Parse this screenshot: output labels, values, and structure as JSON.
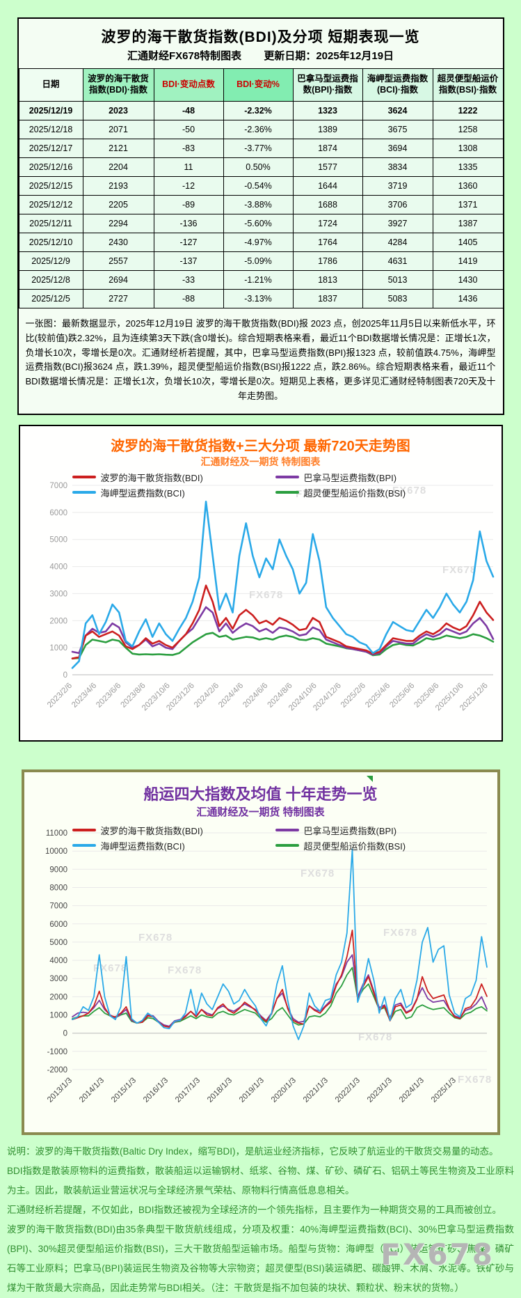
{
  "page": {
    "background": "#ccffcc"
  },
  "table_section": {
    "title": "波罗的海干散货指数(BDI)及分项  短期表现一览",
    "source_label": "汇通财经FX678特制图表",
    "update_label": "更新日期：2025年12月19日",
    "headers": [
      "日期",
      "波罗的海干散货指数(BDI)·指数",
      "BDI·变动点数",
      "BDI·变动%",
      "巴拿马型运费指数(BPI)·指数",
      "海岬型运费指数(BCI)·指数",
      "超灵便型船运价指数(BSI)·指数"
    ],
    "rows": [
      [
        "2025/12/19",
        "2023",
        "-48",
        "-2.32%",
        "1323",
        "3624",
        "1222"
      ],
      [
        "2025/12/18",
        "2071",
        "-50",
        "-2.36%",
        "1389",
        "3675",
        "1258"
      ],
      [
        "2025/12/17",
        "2121",
        "-83",
        "-3.77%",
        "1874",
        "3694",
        "1308"
      ],
      [
        "2025/12/16",
        "2204",
        "11",
        "0.50%",
        "1577",
        "3834",
        "1335"
      ],
      [
        "2025/12/15",
        "2193",
        "-12",
        "-0.54%",
        "1644",
        "3719",
        "1360"
      ],
      [
        "2025/12/12",
        "2205",
        "-89",
        "-3.88%",
        "1688",
        "3706",
        "1371"
      ],
      [
        "2025/12/11",
        "2294",
        "-136",
        "-5.60%",
        "1724",
        "3927",
        "1387"
      ],
      [
        "2025/12/10",
        "2430",
        "-127",
        "-4.97%",
        "1764",
        "4284",
        "1405"
      ],
      [
        "2025/12/9",
        "2557",
        "-137",
        "-5.09%",
        "1786",
        "4631",
        "1419"
      ],
      [
        "2025/12/8",
        "2694",
        "-33",
        "-1.21%",
        "1813",
        "5013",
        "1430"
      ],
      [
        "2025/12/5",
        "2727",
        "-88",
        "-3.13%",
        "1837",
        "5083",
        "1436"
      ]
    ],
    "note": "一张图：最新数据显示，2025年12月19日 波罗的海干散货指数(BDI)报 2023 点，创2025年11月5日以来新低水平，环比(较前值)跌2.32%，且为连续第3天下跌(含0增长)。综合短期表格来看，最近11个BDI数据增长情况是：正增长1次，负增长10次，零增长是0次。汇通财经析若提醒，其中，巴拿马型运费指数(BPI)报1323 点，较前值跌4.75%，海岬型运费指数(BCI)报3624 点，跌1.39%，超灵便型船运价指数(BSI)报1222 点，跌2.86%。综合短期表格来看，最近11个BDI数据增长情况是：正增长1次，负增长10次，零增长是0次。短期见上表格，更多详见汇通财经特制图表720天及十年走势图。"
  },
  "chart_data": [
    {
      "type": "line",
      "title": "波罗的海干散货指数+三大分项  最新720天走势图",
      "subtitle": "汇通财经及一期货  特制图表",
      "title_color": "#ff6600",
      "xlabel": "",
      "ylabel": "",
      "ylim": [
        0,
        7000
      ],
      "yticks": [
        0,
        1000,
        2000,
        3000,
        4000,
        5000,
        6000,
        7000
      ],
      "grid": true,
      "legend_position": "top",
      "tick_color": "#9a9a9a",
      "stroke_width": 2.6,
      "draw_order": [
        3,
        1,
        0,
        2
      ],
      "margins": {
        "l": 75,
        "r": 12,
        "t": 20,
        "b": 88
      },
      "xspan": 0.988,
      "watermark_text": "FX678",
      "watermarks": [
        [
          0.12,
          0.02
        ],
        [
          0.53,
          0.02
        ],
        [
          0.76,
          0.0
        ],
        [
          0.42,
          0.55
        ],
        [
          0.88,
          0.42
        ]
      ],
      "xlabels": [
        "2023/2/6",
        "2023/4/6",
        "2023/6/6",
        "2023/8/6",
        "2023/10/6",
        "2023/12/6",
        "2024/2/6",
        "2024/4/6",
        "2024/6/6",
        "2024/8/6",
        "2024/10/6",
        "2024/12/6",
        "2025/2/6",
        "2025/4/6",
        "2025/6/6",
        "2025/8/6",
        "2025/10/6",
        "2025/12/6"
      ],
      "series": [
        {
          "key": "bdi",
          "name": "波罗的海干散货指数(BDI)",
          "color": "#cc1f1f",
          "values": [
            600,
            650,
            1450,
            1600,
            1400,
            1500,
            1600,
            1450,
            1050,
            950,
            1100,
            1350,
            1150,
            1250,
            1100,
            1000,
            1250,
            1500,
            1900,
            2400,
            3300,
            2700,
            1800,
            2100,
            1700,
            2200,
            2400,
            2200,
            1900,
            2000,
            1850,
            2100,
            2000,
            1850,
            1650,
            1700,
            2100,
            1950,
            1400,
            1300,
            1200,
            1050,
            1000,
            950,
            900,
            780,
            850,
            1100,
            1350,
            1300,
            1250,
            1250,
            1450,
            1600,
            1500,
            1650,
            1900,
            1750,
            1650,
            1800,
            2200,
            2700,
            2300,
            2023
          ]
        },
        {
          "key": "bpi",
          "name": "巴拿马型运费指数(BPI)",
          "color": "#7d3aa3",
          "values": [
            850,
            800,
            1450,
            1700,
            1550,
            1600,
            1900,
            1750,
            1200,
            1000,
            1100,
            1300,
            1050,
            1150,
            1000,
            950,
            1250,
            1500,
            1700,
            2100,
            2500,
            2300,
            1600,
            1900,
            1550,
            1750,
            1900,
            1800,
            1600,
            1700,
            1550,
            1750,
            1700,
            1600,
            1450,
            1500,
            1750,
            1650,
            1300,
            1200,
            1100,
            1000,
            950,
            900,
            850,
            750,
            800,
            1050,
            1250,
            1200,
            1150,
            1150,
            1350,
            1500,
            1400,
            1500,
            1700,
            1600,
            1500,
            1600,
            1900,
            2100,
            1800,
            1323
          ]
        },
        {
          "key": "bci",
          "name": "海岬型运费指数(BCI)",
          "color": "#2aa9e8",
          "values": [
            250,
            500,
            1900,
            2200,
            1500,
            1950,
            2600,
            2300,
            1250,
            1050,
            1600,
            2050,
            1400,
            1900,
            1500,
            1250,
            1700,
            2100,
            2700,
            3600,
            6400,
            4400,
            2400,
            3000,
            2300,
            4400,
            5600,
            4400,
            3600,
            4300,
            3900,
            5000,
            4400,
            3900,
            3000,
            3400,
            5200,
            4200,
            2500,
            2100,
            1800,
            1500,
            1400,
            1200,
            1100,
            800,
            950,
            1500,
            1950,
            1800,
            1650,
            1600,
            2000,
            2400,
            2100,
            2500,
            3000,
            2600,
            2300,
            2700,
            3500,
            5300,
            4200,
            3624
          ]
        },
        {
          "key": "bsi",
          "name": "超灵便型船运价指数(BSI)",
          "color": "#2b9e3f",
          "values": [
            600,
            620,
            1100,
            1300,
            1250,
            1200,
            1300,
            1250,
            1000,
            780,
            750,
            760,
            750,
            760,
            740,
            730,
            800,
            1000,
            1200,
            1350,
            1500,
            1550,
            1400,
            1450,
            1300,
            1350,
            1400,
            1380,
            1300,
            1350,
            1300,
            1400,
            1450,
            1400,
            1300,
            1280,
            1350,
            1300,
            1150,
            1100,
            1050,
            980,
            950,
            900,
            850,
            720,
            750,
            950,
            1100,
            1150,
            1100,
            1080,
            1200,
            1350,
            1300,
            1350,
            1450,
            1400,
            1350,
            1400,
            1500,
            1450,
            1350,
            1222
          ]
        }
      ]
    },
    {
      "type": "line",
      "title": "船运四大指数及均值 十年走势一览",
      "subtitle": "汇通财经及一期货 特制图表",
      "title_color": "#7030a0",
      "xlabel": "",
      "ylabel": "",
      "ylim": [
        -2000,
        11000
      ],
      "yticks": [
        -2000,
        -1000,
        0,
        1000,
        2000,
        3000,
        4000,
        5000,
        6000,
        7000,
        8000,
        9000,
        10000,
        11000
      ],
      "grid": true,
      "legend_position": "top",
      "tick_color": "#444444",
      "stroke_width": 1.8,
      "draw_order": [
        3,
        1,
        0,
        2
      ],
      "margins": {
        "l": 68,
        "r": 14,
        "t": 16,
        "b": 84
      },
      "xspan": 0.926,
      "watermark_text": "FX678",
      "watermarks": [
        [
          0.16,
          0.42
        ],
        [
          0.05,
          0.55
        ],
        [
          0.23,
          0.56
        ],
        [
          0.55,
          0.15
        ],
        [
          0.69,
          0.84
        ],
        [
          0.75,
          0.4
        ],
        [
          0.93,
          1.02
        ]
      ],
      "xlabels": [
        "2013/1/3",
        "2014/1/3",
        "2015/1/3",
        "2016/1/3",
        "2017/1/3",
        "2018/1/3",
        "2019/1/3",
        "2020/1/3",
        "2021/1/3",
        "2022/1/3",
        "2023/1/3",
        "2024/1/3",
        "2025/1/3"
      ],
      "series": [
        {
          "key": "bdi",
          "name": "波罗的海干散货指数(BDI)",
          "color": "#cc1f1f",
          "values": [
            750,
            850,
            950,
            1100,
            1500,
            2300,
            1400,
            950,
            900,
            1100,
            1450,
            750,
            560,
            600,
            950,
            900,
            600,
            390,
            330,
            620,
            700,
            900,
            1200,
            900,
            1300,
            1000,
            950,
            1400,
            1600,
            1250,
            1100,
            1350,
            1700,
            1500,
            1250,
            900,
            650,
            1050,
            1900,
            2400,
            1350,
            700,
            550,
            500,
            1500,
            1250,
            1100,
            1450,
            1700,
            2600,
            3200,
            4200,
            5650,
            1800,
            2550,
            3100,
            2200,
            1250,
            1500,
            680,
            1450,
            1550,
            1100,
            1250,
            1850,
            3100,
            2300,
            1900,
            2000,
            2100,
            1350,
            900,
            800,
            1350,
            1450,
            1900,
            2700,
            2023
          ]
        },
        {
          "key": "bpi",
          "name": "巴拿马型运费指数(BPI)",
          "color": "#7d3aa3",
          "values": [
            900,
            1100,
            1150,
            1100,
            1400,
            1800,
            1300,
            1000,
            850,
            1050,
            1300,
            700,
            560,
            650,
            1000,
            950,
            650,
            450,
            380,
            680,
            750,
            950,
            1200,
            950,
            1300,
            1100,
            1000,
            1350,
            1500,
            1300,
            1200,
            1400,
            1600,
            1450,
            1300,
            950,
            700,
            1100,
            1900,
            2200,
            1400,
            800,
            600,
            650,
            1500,
            1300,
            1200,
            1500,
            1800,
            2700,
            3100,
            3900,
            4300,
            2000,
            2700,
            3200,
            2300,
            1400,
            1550,
            850,
            1550,
            1650,
            1150,
            1300,
            1900,
            2500,
            1900,
            1700,
            1750,
            1800,
            1300,
            950,
            850,
            1250,
            1350,
            1600,
            2000,
            1323
          ]
        },
        {
          "key": "bci",
          "name": "海岬型运费指数(BCI)",
          "color": "#2aa9e8",
          "values": [
            750,
            900,
            1450,
            1250,
            2000,
            4300,
            2000,
            950,
            750,
            1450,
            4200,
            800,
            550,
            700,
            1100,
            900,
            600,
            300,
            250,
            650,
            700,
            1100,
            2400,
            1000,
            2200,
            1600,
            1300,
            2000,
            2700,
            2300,
            1600,
            1800,
            2400,
            1900,
            1500,
            800,
            400,
            1100,
            2700,
            3700,
            1800,
            400,
            -350,
            400,
            2200,
            1500,
            1200,
            1800,
            1900,
            3200,
            3900,
            5500,
            10100,
            1700,
            2600,
            4100,
            2900,
            1100,
            2000,
            700,
            1900,
            2400,
            1400,
            1600,
            2900,
            5000,
            5800,
            3900,
            4600,
            4800,
            2100,
            1100,
            900,
            1900,
            2100,
            2900,
            5300,
            3624
          ]
        },
        {
          "key": "bsi",
          "name": "超灵便型船运价指数(BSI)",
          "color": "#2b9e3f",
          "values": [
            800,
            900,
            950,
            950,
            1200,
            1400,
            1100,
            950,
            850,
            1000,
            1100,
            650,
            550,
            600,
            850,
            800,
            600,
            400,
            350,
            600,
            650,
            800,
            950,
            800,
            1000,
            900,
            850,
            1100,
            1200,
            1050,
            1000,
            1150,
            1300,
            1200,
            1100,
            800,
            600,
            800,
            1200,
            1400,
            1000,
            600,
            450,
            500,
            900,
            950,
            900,
            1100,
            1500,
            2200,
            2600,
            3200,
            3600,
            1900,
            2400,
            2700,
            2000,
            1300,
            1400,
            700,
            1200,
            1300,
            800,
            900,
            1400,
            1550,
            1400,
            1300,
            1350,
            1400,
            1100,
            850,
            780,
            1050,
            1150,
            1350,
            1450,
            1222
          ]
        }
      ]
    }
  ],
  "footer": {
    "paragraphs": [
      "说明：波罗的海干散货指数(Baltic Dry Index，缩写BDI)，是航运业经济指标，它反映了航运业的干散货交易量的动态。",
      "BDI指数是散装原物料的运费指数，散装船运以运输钢材、纸浆、谷物、煤、矿砂、磷矿石、铝矾土等民生物资及工业原料为主。因此，散装航运业营运状况与全球经济景气荣枯、原物料行情高低息息相关。",
      "汇通财经析若提醒，不仅如此，BDI指数还被视为全球经济的一个领先指标，且主要作为一种期货交易的工具而被创立。",
      "波罗的海干散货指数(BDI)由35条典型干散货航线组成，分项及权重：40%海岬型运费指数(BCI)、30%巴拿马型运费指数(BPI)、30%超灵便型船运价指数(BSI)，三大干散货船型运输市场。船型与货物：海岬型（BCI）装运铁矿砂、焦煤、磷矿石等工业原料；巴拿马(BPI)装运民生物资及谷物等大宗物资；超灵便型(BSI)装运磷肥、碳酸钾、木屑、水泥等。铁矿砂与煤为干散货最大宗商品，因此走势常与BDI相关。（注：干散货是指不加包装的块状、颗粒状、粉末状的货物。）"
    ],
    "watermark": "FX678"
  },
  "colors": {
    "page_bg": "#ccffcc",
    "accent_orange": "#ff6600",
    "accent_purple": "#7030a0",
    "bdi_red": "#cc1f1f",
    "bpi_purple": "#7d3aa3",
    "bci_blue": "#2aa9e8",
    "bsi_green": "#2b9e3f",
    "chart2_border": "#8a8a4f",
    "table_header_green": "#a0f2c0",
    "header_warn_text": "#cc0000"
  }
}
